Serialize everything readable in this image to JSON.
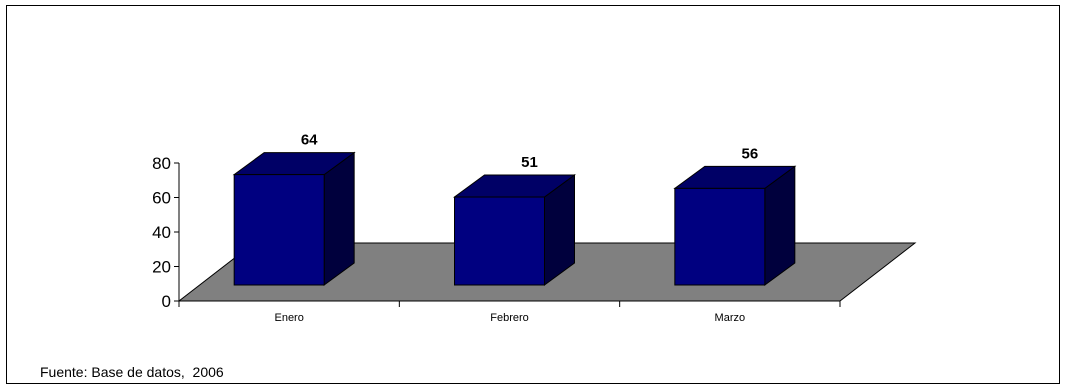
{
  "chart_data": {
    "type": "bar",
    "categories": [
      "Enero",
      "Febrero",
      "Marzo"
    ],
    "values": [
      64,
      51,
      56
    ],
    "ylim": [
      0,
      80
    ],
    "yticks": [
      0,
      20,
      40,
      60,
      80
    ],
    "data_labels": true,
    "grid": false,
    "legend": "none",
    "three_d": true,
    "colors": {
      "bar_front": "#000080",
      "bar_top": "#000066",
      "bar_side": "#00003d",
      "floor": "#808080"
    }
  },
  "source_note": "Fuente: Base de datos,  2006"
}
